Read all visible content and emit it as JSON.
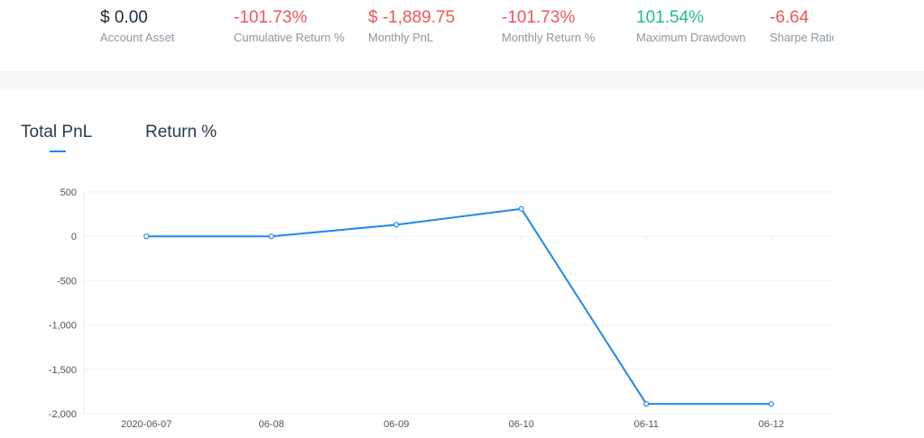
{
  "stats": [
    {
      "value": "$ 0.00",
      "label": "Account Asset",
      "color": "#1c2b3a"
    },
    {
      "value": "-101.73%",
      "label": "Cumulative Return %",
      "color": "#f0555a"
    },
    {
      "value": "$ -1,889.75",
      "label": "Monthly PnL",
      "color": "#f0555a"
    },
    {
      "value": "-101.73%",
      "label": "Monthly Return %",
      "color": "#f0555a"
    },
    {
      "value": "101.54%",
      "label": "Maximum Drawdown",
      "color": "#1ebc8e"
    },
    {
      "value": "-6.64",
      "label": "Sharpe Ratio",
      "color": "#f0555a"
    }
  ],
  "tabs": {
    "total_pnl": "Total PnL",
    "return_pct": "Return %",
    "active": "total_pnl",
    "accent": "#1f88ee"
  },
  "chart_data": {
    "type": "line",
    "x": [
      "2020-06-07",
      "06-08",
      "06-09",
      "06-10",
      "06-11",
      "06-12"
    ],
    "series": [
      {
        "values": [
          0,
          0,
          130,
          310,
          -1890,
          -1890
        ]
      }
    ],
    "yticks": [
      "500",
      "0",
      "-500",
      "-1,000",
      "-1,500",
      "-2,000"
    ],
    "ylim": [
      -2000,
      500
    ],
    "grid": true,
    "line_color": "#1f88ee"
  }
}
